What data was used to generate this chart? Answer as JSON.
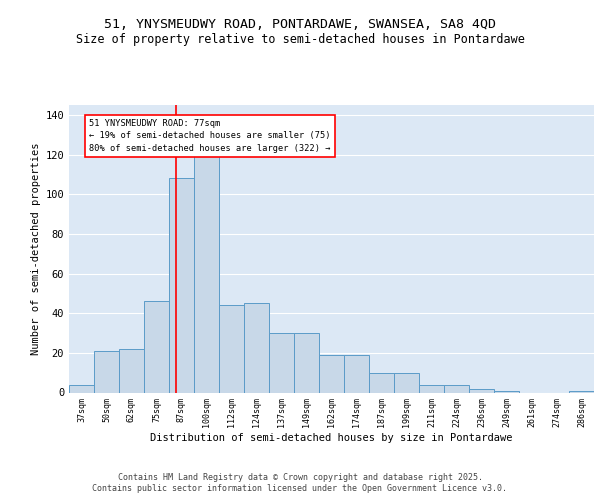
{
  "title": "51, YNYSMEUDWY ROAD, PONTARDAWE, SWANSEA, SA8 4QD",
  "subtitle": "Size of property relative to semi-detached houses in Pontardawe",
  "xlabel": "Distribution of semi-detached houses by size in Pontardawe",
  "ylabel": "Number of semi-detached properties",
  "bin_labels": [
    "37sqm",
    "50sqm",
    "62sqm",
    "75sqm",
    "87sqm",
    "100sqm",
    "112sqm",
    "124sqm",
    "137sqm",
    "149sqm",
    "162sqm",
    "174sqm",
    "187sqm",
    "199sqm",
    "211sqm",
    "224sqm",
    "236sqm",
    "249sqm",
    "261sqm",
    "274sqm",
    "286sqm"
  ],
  "bar_heights": [
    4,
    21,
    22,
    46,
    108,
    122,
    44,
    45,
    30,
    30,
    19,
    19,
    10,
    10,
    4,
    4,
    2,
    1,
    0,
    0,
    1
  ],
  "bar_color": "#c8d8e8",
  "bar_edge_color": "#5b9bc8",
  "background_color": "#dce8f5",
  "grid_color": "#ffffff",
  "annotation_title": "51 YNYSMEUDWY ROAD: 77sqm",
  "annotation_line1": "← 19% of semi-detached houses are smaller (75)",
  "annotation_line2": "80% of semi-detached houses are larger (322) →",
  "red_line_index": 3.77,
  "ylim": [
    0,
    145
  ],
  "yticks": [
    0,
    20,
    40,
    60,
    80,
    100,
    120,
    140
  ],
  "footer_line1": "Contains HM Land Registry data © Crown copyright and database right 2025.",
  "footer_line2": "Contains public sector information licensed under the Open Government Licence v3.0."
}
